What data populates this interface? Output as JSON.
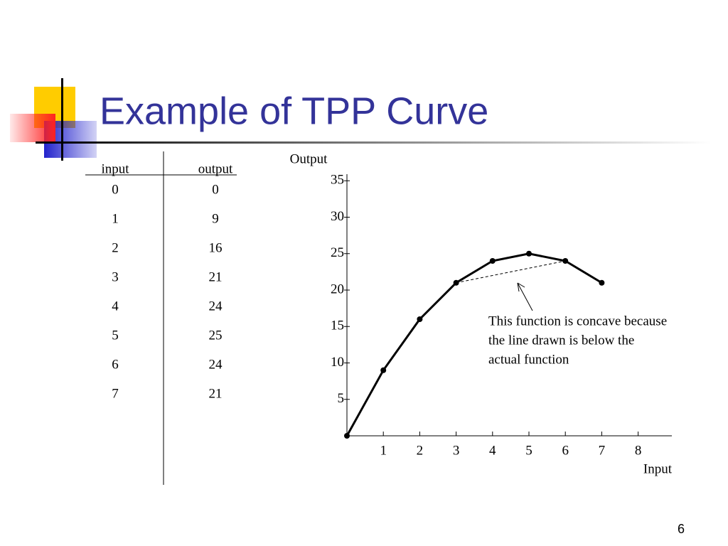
{
  "title": "Example of TPP Curve",
  "table": {
    "header": [
      "input",
      "output"
    ],
    "rows": [
      [
        0,
        0
      ],
      [
        1,
        9
      ],
      [
        2,
        16
      ],
      [
        3,
        21
      ],
      [
        4,
        24
      ],
      [
        5,
        25
      ],
      [
        6,
        24
      ],
      [
        7,
        21
      ]
    ]
  },
  "page_number": 6,
  "chart_data": {
    "type": "line",
    "x_label": "Input",
    "y_label": "Output",
    "x": [
      0,
      1,
      2,
      3,
      4,
      5,
      6,
      7
    ],
    "values": [
      0,
      9,
      16,
      21,
      24,
      25,
      24,
      21
    ],
    "color": "#000000",
    "xlim": [
      0,
      9
    ],
    "ylim": [
      0,
      36
    ],
    "xticks": [
      1,
      2,
      3,
      4,
      5,
      6,
      7,
      8
    ],
    "yticks": [
      5,
      10,
      15,
      20,
      25,
      30,
      35
    ],
    "chord": [
      3,
      6
    ],
    "annotation": [
      "This function is concave because",
      "the line drawn is below the",
      "actual function"
    ]
  }
}
